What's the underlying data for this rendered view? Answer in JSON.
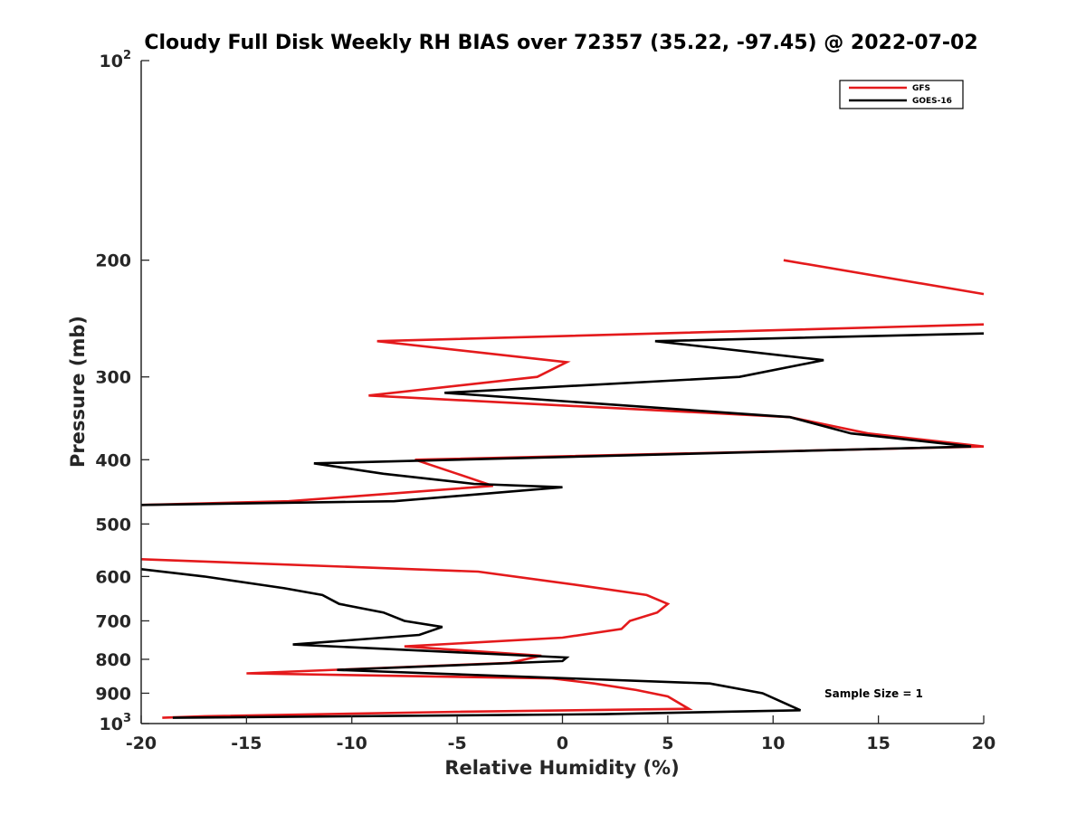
{
  "chart_data": {
    "type": "line",
    "title": "Cloudy Full Disk Weekly RH BIAS over 72357 (35.22, -97.45) @ 2022-07-02",
    "xlabel": "Relative Humidity (%)",
    "ylabel": "Pressure (mb)",
    "xlim": [
      -20,
      20
    ],
    "ylim": [
      100,
      1000
    ],
    "y_scale": "log",
    "y_reversed": true,
    "x_ticks": [
      "-20",
      "-15",
      "-10",
      "-5",
      "0",
      "5",
      "10",
      "15",
      "20"
    ],
    "y_ticks": [
      {
        "value": 100,
        "base": "10",
        "exp": "2"
      },
      {
        "value": 200,
        "label": "200"
      },
      {
        "value": 300,
        "label": "300"
      },
      {
        "value": 400,
        "label": "400"
      },
      {
        "value": 500,
        "label": "500"
      },
      {
        "value": 600,
        "label": "600"
      },
      {
        "value": 700,
        "label": "700"
      },
      {
        "value": 800,
        "label": "800"
      },
      {
        "value": 900,
        "label": "900"
      },
      {
        "value": 1000,
        "base": "10",
        "exp": "3"
      }
    ],
    "grid": false,
    "legend_position": "top-right",
    "annotation": "Sample Size = 1",
    "series": [
      {
        "name": "GFS",
        "color": "#e41a1c",
        "segments": [
          [
            [
              10.5,
              200
            ],
            [
              20,
              225
            ]
          ],
          [
            [
              20,
              250
            ],
            [
              -8.8,
              265
            ],
            [
              0.2,
              285
            ],
            [
              -1.2,
              300
            ],
            [
              -9.2,
              320
            ],
            [
              10.8,
              345
            ],
            [
              14.5,
              365
            ],
            [
              20,
              382
            ],
            [
              -7,
              400
            ],
            [
              -5,
              420
            ],
            [
              -3.3,
              438
            ],
            [
              -13,
              462
            ],
            [
              -20,
              468
            ]
          ],
          [
            [
              -20,
              565
            ],
            [
              -4,
              590
            ],
            [
              1,
              620
            ],
            [
              4,
              640
            ],
            [
              5,
              660
            ],
            [
              4.5,
              680
            ],
            [
              3.2,
              700
            ],
            [
              2.8,
              720
            ],
            [
              0,
              742
            ],
            [
              -7.5,
              765
            ],
            [
              -1,
              790
            ],
            [
              -2.5,
              810
            ],
            [
              -15,
              840
            ],
            [
              -0.5,
              855
            ],
            [
              1.5,
              870
            ],
            [
              3.5,
              890
            ],
            [
              5,
              910
            ],
            [
              6,
              950
            ],
            [
              -5,
              960
            ],
            [
              -17,
              975
            ],
            [
              -19,
              980
            ]
          ]
        ]
      },
      {
        "name": "GOES-16",
        "color": "#000000",
        "segments": [
          [
            [
              20,
              258
            ],
            [
              4.4,
              265
            ],
            [
              12.4,
              283
            ],
            [
              8.4,
              300
            ],
            [
              -5.6,
              317
            ],
            [
              10.8,
              345
            ],
            [
              13.7,
              365
            ],
            [
              19.4,
              382
            ],
            [
              -11.8,
              405
            ],
            [
              -8.5,
              420
            ],
            [
              -4.2,
              435
            ],
            [
              0,
              440
            ],
            [
              -8,
              462
            ],
            [
              -20,
              468
            ]
          ],
          [
            [
              -20,
              585
            ],
            [
              -17,
              600
            ],
            [
              -13.2,
              625
            ],
            [
              -11.4,
              640
            ],
            [
              -10.6,
              660
            ],
            [
              -8.5,
              680
            ],
            [
              -7.5,
              700
            ],
            [
              -5.7,
              715
            ],
            [
              -6.8,
              735
            ],
            [
              -12.8,
              760
            ],
            [
              0.2,
              795
            ],
            [
              0,
              805
            ],
            [
              -10.7,
              830
            ],
            [
              7,
              870
            ],
            [
              9.5,
              900
            ],
            [
              10.5,
              930
            ],
            [
              11.3,
              955
            ],
            [
              2,
              968
            ],
            [
              -18.5,
              980
            ]
          ]
        ]
      }
    ]
  }
}
